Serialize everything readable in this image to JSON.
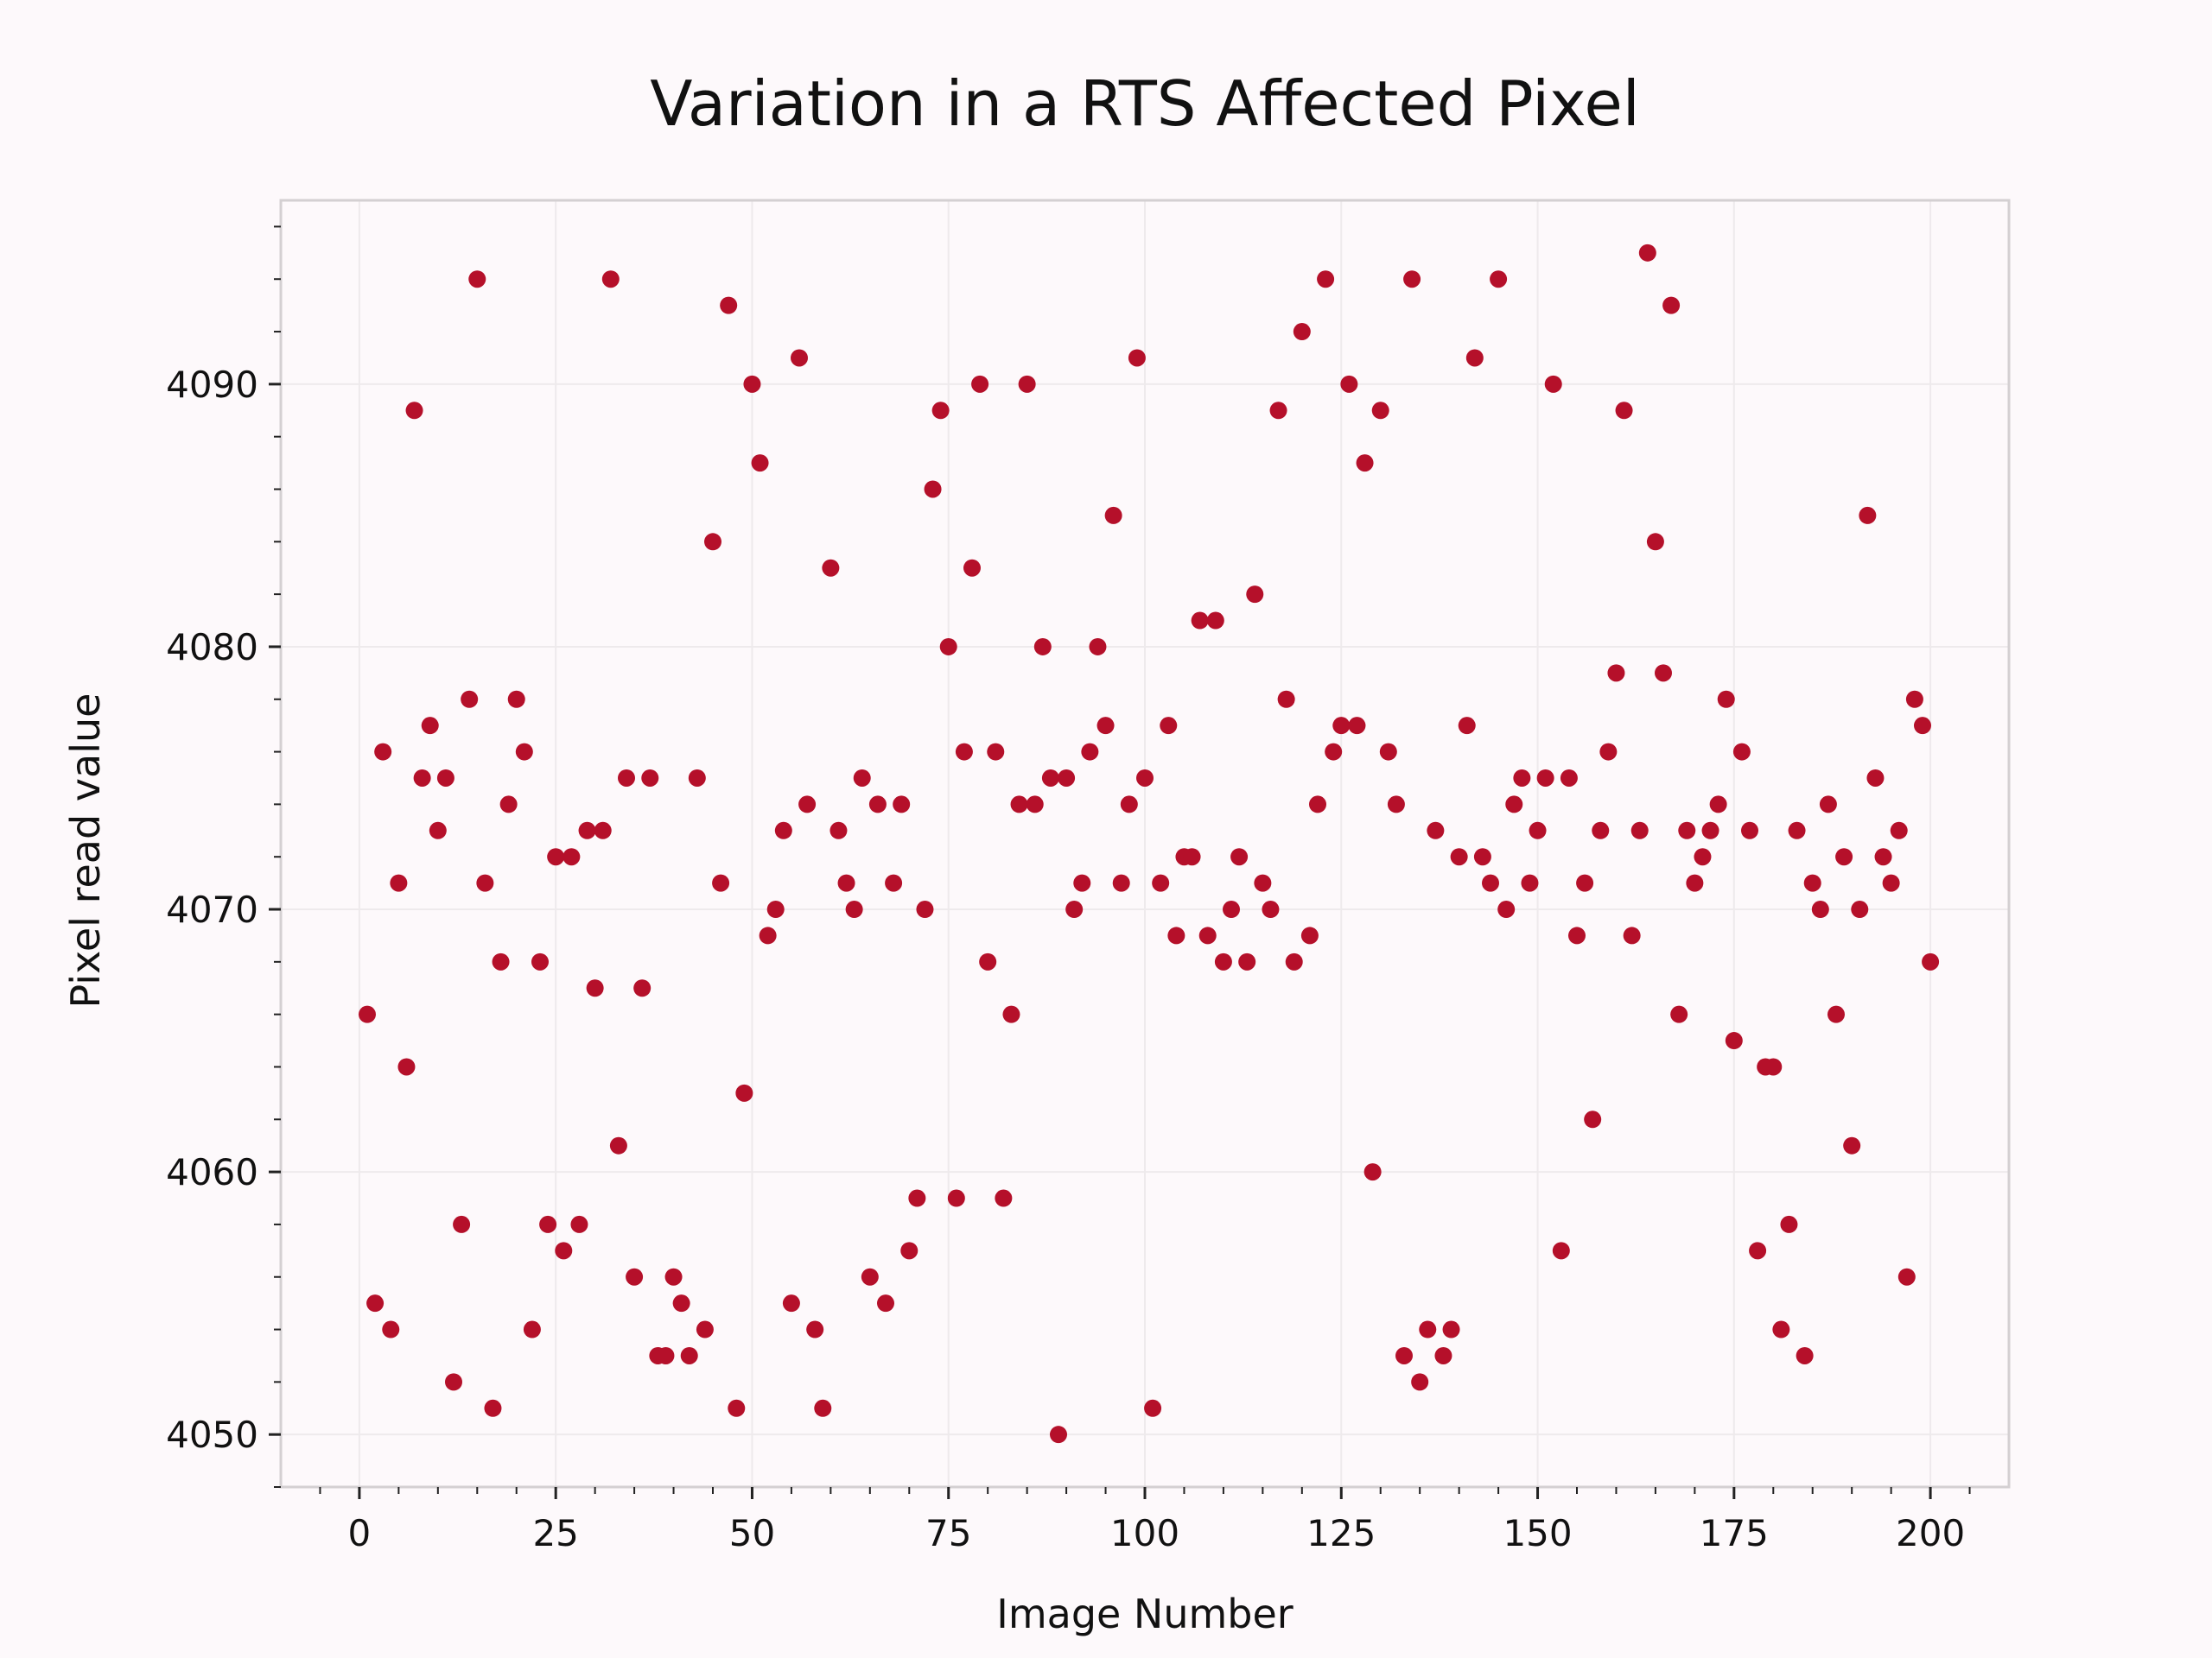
{
  "chart_data": {
    "type": "scatter",
    "title": "Variation in a RTS Affected Pixel",
    "xlabel": "Image Number",
    "ylabel": "Pixel read value",
    "xlim": [
      -10,
      210
    ],
    "ylim": [
      4048,
      4097
    ],
    "xticks": [
      0,
      25,
      50,
      75,
      100,
      125,
      150,
      175,
      200
    ],
    "yticks": [
      4050,
      4060,
      4070,
      4080,
      4090
    ],
    "grid": true,
    "colors": {
      "point": "#b5102a",
      "background": "#fdf9fb",
      "grid": "#eeeaec",
      "frame": "#d4d0d2"
    },
    "series": [
      {
        "x": [
          1,
          2,
          3,
          4,
          5,
          6,
          7,
          8,
          9,
          10,
          11,
          12,
          13,
          14,
          15,
          16,
          17,
          18,
          19,
          20,
          21,
          22,
          23,
          24,
          25,
          26,
          27,
          28,
          29,
          30,
          31,
          32,
          33,
          34,
          35,
          36,
          37,
          38,
          39,
          40,
          41,
          42,
          43,
          44,
          45,
          46,
          47,
          48,
          49,
          50,
          51,
          52,
          53,
          54,
          55,
          56,
          57,
          58,
          59,
          60,
          61,
          62,
          63,
          64,
          65,
          66,
          67,
          68,
          69,
          70,
          71,
          72,
          73,
          74,
          75,
          76,
          77,
          78,
          79,
          80,
          81,
          82,
          83,
          84,
          85,
          86,
          87,
          88,
          89,
          90,
          91,
          92,
          93,
          94,
          95,
          96,
          97,
          98,
          99,
          100,
          101,
          102,
          103,
          104,
          105,
          106,
          107,
          108,
          109,
          110,
          111,
          112,
          113,
          114,
          115,
          116,
          117,
          118,
          119,
          120,
          121,
          122,
          123,
          124,
          125,
          126,
          127,
          128,
          129,
          130,
          131,
          132,
          133,
          134,
          135,
          136,
          137,
          138,
          139,
          140,
          141,
          142,
          143,
          144,
          145,
          146,
          147,
          148,
          149,
          150,
          151,
          152,
          153,
          154,
          155,
          156,
          157,
          158,
          159,
          160,
          161,
          162,
          163,
          164,
          165,
          166,
          167,
          168,
          169,
          170,
          171,
          172,
          173,
          174,
          175,
          176,
          177,
          178,
          179,
          180,
          181,
          182,
          183,
          184,
          185,
          186,
          187,
          188,
          189,
          190,
          191,
          192,
          193,
          194,
          195,
          196,
          197,
          198,
          199,
          200
        ],
        "y": [
          4066,
          4055,
          4076,
          4054,
          4071,
          4064,
          4089,
          4075,
          4077,
          4073,
          4075,
          4052,
          4058,
          4078,
          4094,
          4071,
          4051,
          4068,
          4074,
          4078,
          4076,
          4054,
          4068,
          4058,
          4072,
          4057,
          4072,
          4058,
          4073,
          4067,
          4073,
          4094,
          4061,
          4075,
          4056,
          4067,
          4075,
          4053,
          4053,
          4056,
          4055,
          4053,
          4075,
          4054,
          4084,
          4071,
          4093,
          4051,
          4063,
          4090,
          4087,
          4069,
          4070,
          4073,
          4055,
          4091,
          4074,
          4054,
          4051,
          4083,
          4073,
          4071,
          4070,
          4075,
          4056,
          4074,
          4055,
          4071,
          4074,
          4057,
          4059,
          4070,
          4086,
          4089,
          4080,
          4059,
          4076,
          4083,
          4090,
          4068,
          4076,
          4059,
          4066,
          4074,
          4090,
          4074,
          4080,
          4075,
          4050,
          4075,
          4070,
          4071,
          4076,
          4080,
          4077,
          4085,
          4071,
          4074,
          4091,
          4075,
          4051,
          4071,
          4077,
          4069,
          4072,
          4072,
          4081,
          4069,
          4081,
          4068,
          4070,
          4072,
          4068,
          4082,
          4071,
          4070,
          4089,
          4078,
          4068,
          4092,
          4069,
          4074,
          4094,
          4076,
          4077,
          4090,
          4077,
          4087,
          4060,
          4089,
          4076,
          4074,
          4053,
          4094,
          4052,
          4054,
          4073,
          4053,
          4054,
          4072,
          4077,
          4091,
          4072,
          4071,
          4094,
          4070,
          4074,
          4075,
          4071,
          4073,
          4075,
          4090,
          4057,
          4075,
          4069,
          4071,
          4062,
          4073,
          4076,
          4079,
          4089,
          4069,
          4073,
          4095,
          4084,
          4079,
          4093,
          4066,
          4073,
          4071,
          4072,
          4073,
          4074,
          4078,
          4065,
          4076,
          4073,
          4057,
          4064,
          4064,
          4054,
          4058,
          4073,
          4053,
          4071,
          4070,
          4074,
          4066,
          4072,
          4061,
          4070,
          4085,
          4075,
          4072,
          4071,
          4073,
          4056,
          4078,
          4077,
          4068
        ]
      }
    ]
  }
}
